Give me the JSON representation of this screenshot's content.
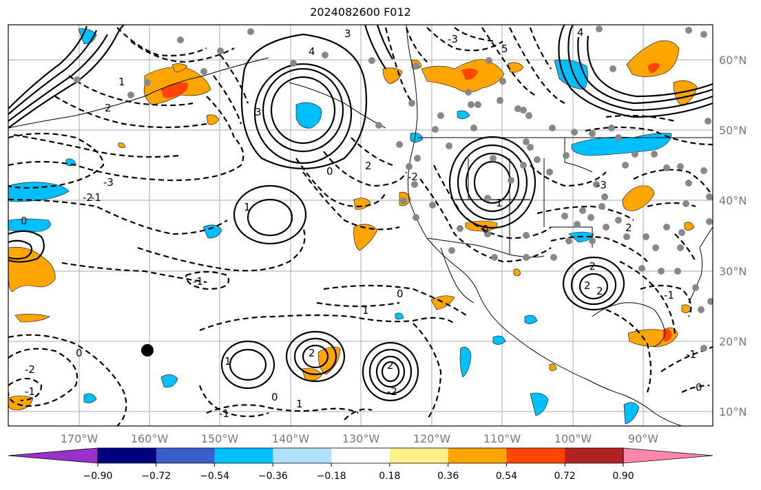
{
  "title": "2024082600 F012",
  "lat_labels": [
    "60°N",
    "50°N",
    "40°N",
    "30°N",
    "20°N",
    "10°N"
  ],
  "lon_labels": [
    "170°W",
    "160°W",
    "150°W",
    "140°W",
    "130°W",
    "120°W",
    "110°W",
    "100°W",
    "90°W"
  ],
  "colorbar": {
    "colors": [
      "#9932cc",
      "#000080",
      "#3a5fcd",
      "#00bfff",
      "#b0e2ff",
      "#ffffff",
      "#fff08a",
      "#ffa500",
      "#ff4500",
      "#b22222",
      "#ff88aa"
    ],
    "tick_labels": [
      "−0.90",
      "−0.72",
      "−0.54",
      "−0.36",
      "−0.18",
      "0.18",
      "0.36",
      "0.54",
      "0.72",
      "0.90"
    ]
  },
  "contour_labels": [
    "4",
    "3",
    "2",
    "1",
    "0",
    "-1",
    "-2",
    "-3",
    "-1",
    "-2",
    "1",
    "0",
    "-1",
    "0",
    "1",
    "2",
    "1",
    "2",
    "-2",
    "0",
    "-1",
    "1",
    "0",
    "2",
    "-2",
    "-1",
    "-3",
    "1",
    "2",
    "2",
    "-1",
    "0",
    "-2",
    "3",
    "4",
    "5",
    "2",
    "-3",
    "0"
  ],
  "colors": {
    "positive_shading": "#ffa500",
    "strong_positive": "#ff4500",
    "negative_shading": "#00bfff",
    "station_marker": "#888888",
    "marker": "#000000"
  }
}
